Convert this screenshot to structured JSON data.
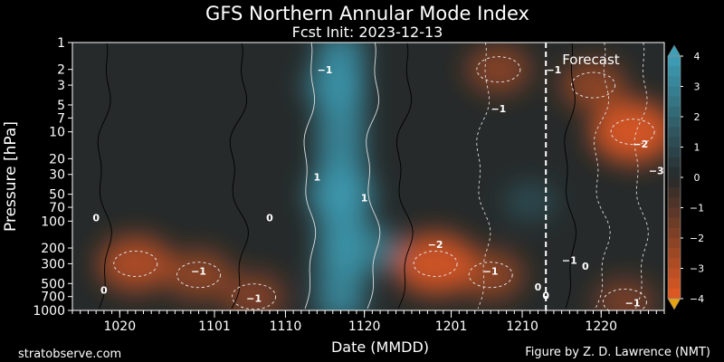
{
  "chart_data": {
    "type": "heatmap",
    "title": "GFS Northern Annular Mode Index",
    "subtitle": "Fcst Init: 2023-12-13",
    "xlabel": "Date (MMDD)",
    "ylabel": "Pressure [hPa]",
    "x_ticks": [
      {
        "label": "1020",
        "date": "2023-10-20"
      },
      {
        "label": "1101",
        "date": "2023-11-01"
      },
      {
        "label": "1110",
        "date": "2023-11-10"
      },
      {
        "label": "1120",
        "date": "2023-11-20"
      },
      {
        "label": "1201",
        "date": "2023-12-01"
      },
      {
        "label": "1210",
        "date": "2023-12-10"
      },
      {
        "label": "1220",
        "date": "2023-12-20"
      }
    ],
    "x_range": [
      "2023-10-14",
      "2023-12-28"
    ],
    "y_scale": "log",
    "y_inverted": true,
    "y_ticks": [
      1,
      2,
      3,
      5,
      7,
      10,
      20,
      30,
      50,
      70,
      100,
      200,
      300,
      500,
      700,
      1000
    ],
    "y_range": [
      1000,
      1
    ],
    "forecast_init": "2023-12-13",
    "forecast_label": "Forecast",
    "colorbar": {
      "ticks": [
        "4",
        "3",
        "2",
        "1",
        "0",
        "−1",
        "−2",
        "−3",
        "−4"
      ],
      "range": [
        -4,
        4
      ],
      "extend": "both",
      "positive_color": "#3da0b8",
      "negative_color": "#e45a22",
      "neutral_color": "#262a2a"
    },
    "anomaly_regions": [
      {
        "date": "2023-10-22",
        "pressure": 300,
        "value": -2.1
      },
      {
        "date": "2023-10-30",
        "pressure": 400,
        "value": -1.6
      },
      {
        "date": "2023-11-06",
        "pressure": 700,
        "value": -1.4
      },
      {
        "date": "2023-11-17",
        "pressure": 50,
        "value": 1.9
      },
      {
        "date": "2023-11-16",
        "pressure": 3,
        "value": 1.4
      },
      {
        "date": "2023-11-20",
        "pressure": 200,
        "value": 1.8
      },
      {
        "date": "2023-11-29",
        "pressure": 300,
        "value": -2.6
      },
      {
        "date": "2023-12-06",
        "pressure": 400,
        "value": -1.6
      },
      {
        "date": "2023-12-07",
        "pressure": 2,
        "value": -1.5
      },
      {
        "date": "2023-12-11",
        "pressure": 60,
        "value": 0.8
      },
      {
        "date": "2023-12-24",
        "pressure": 10,
        "value": -2.7
      },
      {
        "date": "2023-12-19",
        "pressure": 3,
        "value": -1.6
      },
      {
        "date": "2023-12-23",
        "pressure": 800,
        "value": -1.3
      }
    ],
    "contour_labels": [
      "0",
      "0",
      "0",
      "−1",
      "−1",
      "−1",
      "1",
      "1",
      "−1",
      "−2",
      "−1",
      "0",
      "0",
      "−1",
      "−1",
      "0",
      "−1",
      "−2",
      "−3"
    ]
  },
  "footer": {
    "left": "stratobserve.com",
    "right": "Figure by Z. D. Lawrence (NMT)"
  }
}
